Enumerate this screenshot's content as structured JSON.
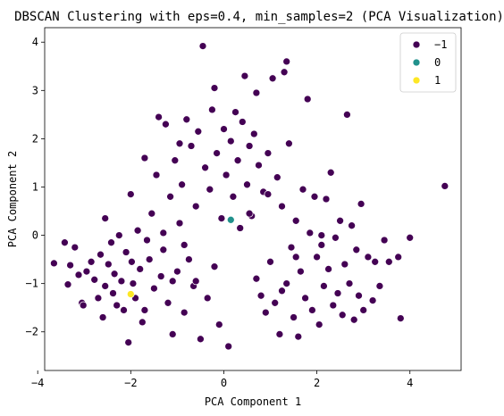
{
  "chart_data": {
    "type": "scatter",
    "title": "DBSCAN Clustering with eps=0.4, min_samples=2 (PCA Visualization)",
    "xlabel": "PCA Component 1",
    "ylabel": "PCA Component 2",
    "xlim": [
      -3.85,
      5.1
    ],
    "ylim": [
      -2.8,
      4.3
    ],
    "xticks": [
      -4,
      -2,
      0,
      2,
      4
    ],
    "yticks": [
      -2,
      -1,
      0,
      1,
      2,
      3,
      4
    ],
    "grid": false,
    "legend_position": "top-right",
    "series": [
      {
        "name": "−1",
        "color": "#440154",
        "points": [
          [
            -3.65,
            -0.58
          ],
          [
            -3.42,
            -0.15
          ],
          [
            -3.35,
            -1.02
          ],
          [
            -3.3,
            -0.62
          ],
          [
            -3.2,
            -0.25
          ],
          [
            -3.12,
            -0.82
          ],
          [
            -3.05,
            -1.4
          ],
          [
            -3.02,
            -1.45
          ],
          [
            -2.95,
            -0.75
          ],
          [
            -2.85,
            -0.55
          ],
          [
            -2.78,
            -0.92
          ],
          [
            -2.7,
            -1.3
          ],
          [
            -2.65,
            -0.4
          ],
          [
            -2.6,
            -1.7
          ],
          [
            -2.55,
            -1.05
          ],
          [
            -2.48,
            -0.6
          ],
          [
            -2.42,
            -0.15
          ],
          [
            -2.38,
            -1.2
          ],
          [
            -2.35,
            -0.8
          ],
          [
            -2.3,
            -1.45
          ],
          [
            -2.25,
            0.0
          ],
          [
            -2.2,
            -0.95
          ],
          [
            -2.15,
            -1.55
          ],
          [
            -2.1,
            -0.35
          ],
          [
            -2.05,
            -2.22
          ],
          [
            -2.0,
            0.85
          ],
          [
            -1.98,
            -0.55
          ],
          [
            -1.95,
            -1.0
          ],
          [
            -1.9,
            -1.3
          ],
          [
            -1.85,
            0.1
          ],
          [
            -1.8,
            -0.7
          ],
          [
            -1.75,
            -1.8
          ],
          [
            -1.7,
            1.6
          ],
          [
            -1.65,
            -0.1
          ],
          [
            -1.6,
            -0.5
          ],
          [
            -1.55,
            0.45
          ],
          [
            -1.5,
            -1.1
          ],
          [
            -1.45,
            1.25
          ],
          [
            -1.4,
            2.45
          ],
          [
            -1.35,
            -0.85
          ],
          [
            -1.3,
            0.05
          ],
          [
            -1.25,
            2.3
          ],
          [
            -1.2,
            -1.4
          ],
          [
            -1.15,
            0.8
          ],
          [
            -1.1,
            -2.05
          ],
          [
            -1.05,
            1.55
          ],
          [
            -1.0,
            -0.75
          ],
          [
            -0.95,
            0.25
          ],
          [
            -0.9,
            1.05
          ],
          [
            -0.85,
            -1.6
          ],
          [
            -0.8,
            2.4
          ],
          [
            -0.75,
            -0.5
          ],
          [
            -0.7,
            1.85
          ],
          [
            -0.65,
            -1.05
          ],
          [
            -0.6,
            0.6
          ],
          [
            -0.55,
            2.15
          ],
          [
            -0.5,
            -2.15
          ],
          [
            -0.45,
            3.92
          ],
          [
            -0.4,
            1.4
          ],
          [
            -0.35,
            -1.3
          ],
          [
            -0.3,
            0.95
          ],
          [
            -0.25,
            2.6
          ],
          [
            -0.2,
            -0.65
          ],
          [
            -0.15,
            1.7
          ],
          [
            -0.1,
            -1.85
          ],
          [
            -0.05,
            0.35
          ],
          [
            0.0,
            2.2
          ],
          [
            0.05,
            1.25
          ],
          [
            0.1,
            -2.3
          ],
          [
            0.15,
            1.95
          ],
          [
            0.2,
            0.8
          ],
          [
            0.25,
            2.55
          ],
          [
            0.3,
            1.55
          ],
          [
            0.35,
            0.15
          ],
          [
            0.4,
            2.35
          ],
          [
            0.45,
            3.3
          ],
          [
            0.5,
            1.05
          ],
          [
            0.55,
            1.85
          ],
          [
            0.6,
            0.4
          ],
          [
            0.65,
            2.1
          ],
          [
            0.7,
            -0.9
          ],
          [
            0.75,
            1.45
          ],
          [
            0.8,
            -1.25
          ],
          [
            0.85,
            0.9
          ],
          [
            0.9,
            -1.6
          ],
          [
            0.95,
            1.7
          ],
          [
            1.0,
            -0.55
          ],
          [
            1.05,
            3.25
          ],
          [
            1.1,
            -1.4
          ],
          [
            1.15,
            1.2
          ],
          [
            1.2,
            -2.05
          ],
          [
            1.25,
            0.6
          ],
          [
            1.3,
            3.38
          ],
          [
            1.35,
            -1.0
          ],
          [
            1.4,
            1.9
          ],
          [
            1.45,
            -0.25
          ],
          [
            1.5,
            -1.7
          ],
          [
            1.55,
            0.3
          ],
          [
            1.6,
            -2.1
          ],
          [
            1.65,
            -0.75
          ],
          [
            1.7,
            0.95
          ],
          [
            1.75,
            -1.3
          ],
          [
            1.8,
            2.82
          ],
          [
            1.85,
            0.05
          ],
          [
            1.9,
            -1.55
          ],
          [
            1.95,
            0.8
          ],
          [
            2.0,
            -0.45
          ],
          [
            2.05,
            -1.85
          ],
          [
            2.1,
            -0.2
          ],
          [
            2.15,
            -1.05
          ],
          [
            2.2,
            0.75
          ],
          [
            2.25,
            -0.7
          ],
          [
            2.3,
            1.3
          ],
          [
            2.35,
            -1.45
          ],
          [
            2.4,
            -0.05
          ],
          [
            2.45,
            -1.2
          ],
          [
            2.5,
            0.3
          ],
          [
            2.55,
            -1.65
          ],
          [
            2.6,
            -0.6
          ],
          [
            2.65,
            2.5
          ],
          [
            2.7,
            -1.0
          ],
          [
            2.75,
            0.2
          ],
          [
            2.8,
            -1.75
          ],
          [
            2.85,
            -0.3
          ],
          [
            2.9,
            -1.25
          ],
          [
            2.95,
            0.65
          ],
          [
            3.0,
            -1.55
          ],
          [
            3.1,
            -0.45
          ],
          [
            3.2,
            -1.35
          ],
          [
            3.25,
            -0.55
          ],
          [
            3.35,
            -1.05
          ],
          [
            3.45,
            -0.1
          ],
          [
            3.55,
            -0.55
          ],
          [
            3.75,
            -0.45
          ],
          [
            3.8,
            -1.72
          ],
          [
            4.0,
            -0.05
          ],
          [
            4.75,
            1.02
          ],
          [
            -1.3,
            -0.3
          ],
          [
            -1.1,
            -0.95
          ],
          [
            -0.85,
            -0.2
          ],
          [
            0.55,
            0.45
          ],
          [
            0.95,
            0.85
          ],
          [
            1.25,
            -1.15
          ],
          [
            1.55,
            -0.45
          ],
          [
            2.1,
            0.0
          ],
          [
            0.7,
            2.95
          ],
          [
            -0.2,
            3.05
          ],
          [
            1.35,
            3.6
          ],
          [
            -0.95,
            1.9
          ],
          [
            -2.55,
            0.35
          ],
          [
            -1.7,
            -1.55
          ],
          [
            -0.6,
            -0.95
          ]
        ]
      },
      {
        "name": "0",
        "color": "#21918c",
        "points": [
          [
            0.15,
            0.32
          ]
        ]
      },
      {
        "name": "1",
        "color": "#fde725",
        "points": [
          [
            -2.0,
            -1.22
          ]
        ]
      }
    ]
  }
}
